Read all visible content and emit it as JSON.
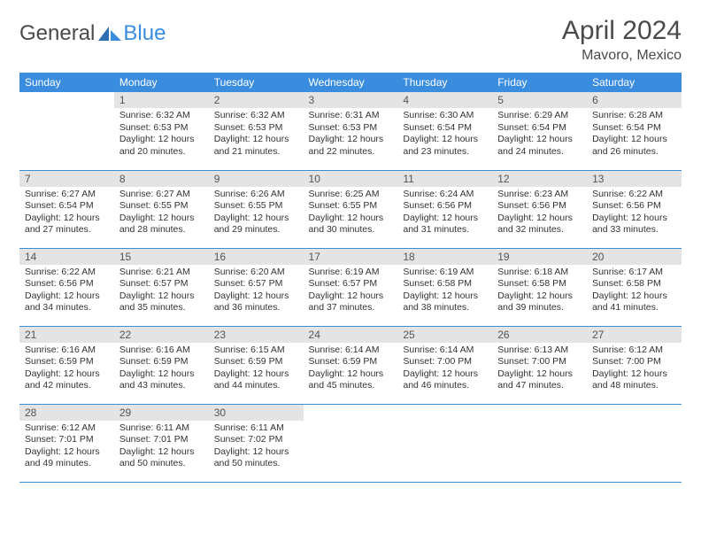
{
  "brand": {
    "part1": "General",
    "part2": "Blue"
  },
  "header": {
    "title": "April 2024",
    "location": "Mavoro, Mexico"
  },
  "colors": {
    "header_bg": "#3a8dde",
    "header_text": "#ffffff",
    "daynum_bg": "#e4e4e4",
    "border": "#3a8dde",
    "text": "#333333",
    "logo_blue": "#3a8dde"
  },
  "daynames": [
    "Sunday",
    "Monday",
    "Tuesday",
    "Wednesday",
    "Thursday",
    "Friday",
    "Saturday"
  ],
  "first_weekday_index": 1,
  "days_in_month": 30,
  "weeks": [
    [
      null,
      {
        "n": "1",
        "sr": "6:32 AM",
        "ss": "6:53 PM",
        "dl": "12 hours and 20 minutes."
      },
      {
        "n": "2",
        "sr": "6:32 AM",
        "ss": "6:53 PM",
        "dl": "12 hours and 21 minutes."
      },
      {
        "n": "3",
        "sr": "6:31 AM",
        "ss": "6:53 PM",
        "dl": "12 hours and 22 minutes."
      },
      {
        "n": "4",
        "sr": "6:30 AM",
        "ss": "6:54 PM",
        "dl": "12 hours and 23 minutes."
      },
      {
        "n": "5",
        "sr": "6:29 AM",
        "ss": "6:54 PM",
        "dl": "12 hours and 24 minutes."
      },
      {
        "n": "6",
        "sr": "6:28 AM",
        "ss": "6:54 PM",
        "dl": "12 hours and 26 minutes."
      }
    ],
    [
      {
        "n": "7",
        "sr": "6:27 AM",
        "ss": "6:54 PM",
        "dl": "12 hours and 27 minutes."
      },
      {
        "n": "8",
        "sr": "6:27 AM",
        "ss": "6:55 PM",
        "dl": "12 hours and 28 minutes."
      },
      {
        "n": "9",
        "sr": "6:26 AM",
        "ss": "6:55 PM",
        "dl": "12 hours and 29 minutes."
      },
      {
        "n": "10",
        "sr": "6:25 AM",
        "ss": "6:55 PM",
        "dl": "12 hours and 30 minutes."
      },
      {
        "n": "11",
        "sr": "6:24 AM",
        "ss": "6:56 PM",
        "dl": "12 hours and 31 minutes."
      },
      {
        "n": "12",
        "sr": "6:23 AM",
        "ss": "6:56 PM",
        "dl": "12 hours and 32 minutes."
      },
      {
        "n": "13",
        "sr": "6:22 AM",
        "ss": "6:56 PM",
        "dl": "12 hours and 33 minutes."
      }
    ],
    [
      {
        "n": "14",
        "sr": "6:22 AM",
        "ss": "6:56 PM",
        "dl": "12 hours and 34 minutes."
      },
      {
        "n": "15",
        "sr": "6:21 AM",
        "ss": "6:57 PM",
        "dl": "12 hours and 35 minutes."
      },
      {
        "n": "16",
        "sr": "6:20 AM",
        "ss": "6:57 PM",
        "dl": "12 hours and 36 minutes."
      },
      {
        "n": "17",
        "sr": "6:19 AM",
        "ss": "6:57 PM",
        "dl": "12 hours and 37 minutes."
      },
      {
        "n": "18",
        "sr": "6:19 AM",
        "ss": "6:58 PM",
        "dl": "12 hours and 38 minutes."
      },
      {
        "n": "19",
        "sr": "6:18 AM",
        "ss": "6:58 PM",
        "dl": "12 hours and 39 minutes."
      },
      {
        "n": "20",
        "sr": "6:17 AM",
        "ss": "6:58 PM",
        "dl": "12 hours and 41 minutes."
      }
    ],
    [
      {
        "n": "21",
        "sr": "6:16 AM",
        "ss": "6:59 PM",
        "dl": "12 hours and 42 minutes."
      },
      {
        "n": "22",
        "sr": "6:16 AM",
        "ss": "6:59 PM",
        "dl": "12 hours and 43 minutes."
      },
      {
        "n": "23",
        "sr": "6:15 AM",
        "ss": "6:59 PM",
        "dl": "12 hours and 44 minutes."
      },
      {
        "n": "24",
        "sr": "6:14 AM",
        "ss": "6:59 PM",
        "dl": "12 hours and 45 minutes."
      },
      {
        "n": "25",
        "sr": "6:14 AM",
        "ss": "7:00 PM",
        "dl": "12 hours and 46 minutes."
      },
      {
        "n": "26",
        "sr": "6:13 AM",
        "ss": "7:00 PM",
        "dl": "12 hours and 47 minutes."
      },
      {
        "n": "27",
        "sr": "6:12 AM",
        "ss": "7:00 PM",
        "dl": "12 hours and 48 minutes."
      }
    ],
    [
      {
        "n": "28",
        "sr": "6:12 AM",
        "ss": "7:01 PM",
        "dl": "12 hours and 49 minutes."
      },
      {
        "n": "29",
        "sr": "6:11 AM",
        "ss": "7:01 PM",
        "dl": "12 hours and 50 minutes."
      },
      {
        "n": "30",
        "sr": "6:11 AM",
        "ss": "7:02 PM",
        "dl": "12 hours and 50 minutes."
      },
      null,
      null,
      null,
      null
    ]
  ],
  "labels": {
    "sunrise": "Sunrise:",
    "sunset": "Sunset:",
    "daylight": "Daylight:"
  }
}
